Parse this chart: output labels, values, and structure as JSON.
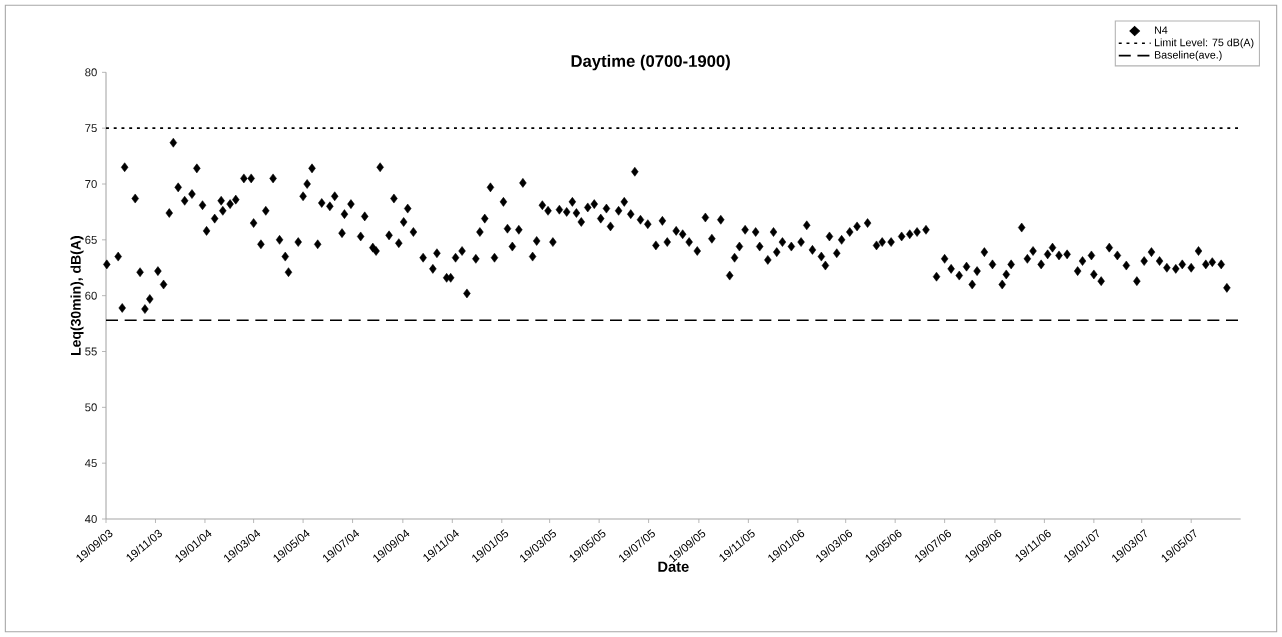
{
  "chart_data": {
    "type": "scatter",
    "title": "Daytime (0700-1900)",
    "xlabel": "Date",
    "ylabel": "Leq(30min), dB(A)",
    "xlim": [
      "2003-09-19",
      "2007-07-19"
    ],
    "ylim": [
      40,
      80
    ],
    "yticks": [
      40,
      45,
      50,
      55,
      60,
      65,
      70,
      75,
      80
    ],
    "xticks": [
      {
        "value": "2003-09-19",
        "label": "19/09/03"
      },
      {
        "value": "2003-11-19",
        "label": "19/11/03"
      },
      {
        "value": "2004-01-19",
        "label": "19/01/04"
      },
      {
        "value": "2004-03-19",
        "label": "19/03/04"
      },
      {
        "value": "2004-05-19",
        "label": "19/05/04"
      },
      {
        "value": "2004-07-19",
        "label": "19/07/04"
      },
      {
        "value": "2004-09-19",
        "label": "19/09/04"
      },
      {
        "value": "2004-11-19",
        "label": "19/11/04"
      },
      {
        "value": "2005-01-19",
        "label": "19/01/05"
      },
      {
        "value": "2005-03-19",
        "label": "19/03/05"
      },
      {
        "value": "2005-05-19",
        "label": "19/05/05"
      },
      {
        "value": "2005-07-19",
        "label": "19/07/05"
      },
      {
        "value": "2005-09-19",
        "label": "19/09/05"
      },
      {
        "value": "2005-11-19",
        "label": "19/11/05"
      },
      {
        "value": "2006-01-19",
        "label": "19/01/06"
      },
      {
        "value": "2006-03-19",
        "label": "19/03/06"
      },
      {
        "value": "2006-05-19",
        "label": "19/05/06"
      },
      {
        "value": "2006-07-19",
        "label": "19/07/06"
      },
      {
        "value": "2006-09-19",
        "label": "19/09/06"
      },
      {
        "value": "2006-11-19",
        "label": "19/11/06"
      },
      {
        "value": "2007-01-19",
        "label": "19/01/07"
      },
      {
        "value": "2007-03-19",
        "label": "19/03/07"
      },
      {
        "value": "2007-05-19",
        "label": "19/05/07"
      }
    ],
    "marker": "diamond",
    "legend": "top right",
    "ref_lines": [
      {
        "axis": "y",
        "value": 75,
        "label": "Limit Level: 75 dB(A)",
        "line_style": "dotted",
        "color": "#000000"
      },
      {
        "axis": "y",
        "value": 57.8,
        "label": "Baseline(ave.)",
        "line_style": "dashed",
        "color": "#000000"
      }
    ],
    "series": [
      {
        "name": "N4",
        "color": "#000000",
        "x": [
          "2003-09-20",
          "2003-10-04",
          "2003-10-09",
          "2003-10-12",
          "2003-10-25",
          "2003-10-31",
          "2003-11-06",
          "2003-11-12",
          "2003-11-22",
          "2003-11-29",
          "2003-12-06",
          "2003-12-11",
          "2003-12-17",
          "2003-12-25",
          "2004-01-03",
          "2004-01-09",
          "2004-01-16",
          "2004-01-21",
          "2004-01-31",
          "2004-02-08",
          "2004-02-10",
          "2004-02-19",
          "2004-02-26",
          "2004-03-07",
          "2004-03-16",
          "2004-03-19",
          "2004-03-28",
          "2004-04-03",
          "2004-04-12",
          "2004-04-20",
          "2004-04-27",
          "2004-05-01",
          "2004-05-13",
          "2004-05-19",
          "2004-05-24",
          "2004-05-30",
          "2004-06-06",
          "2004-06-11",
          "2004-06-21",
          "2004-06-27",
          "2004-07-06",
          "2004-07-09",
          "2004-07-17",
          "2004-07-29",
          "2004-08-03",
          "2004-08-13",
          "2004-08-17",
          "2004-08-22",
          "2004-09-02",
          "2004-09-08",
          "2004-09-14",
          "2004-09-20",
          "2004-09-25",
          "2004-10-02",
          "2004-10-14",
          "2004-10-26",
          "2004-10-31",
          "2004-11-12",
          "2004-11-17",
          "2004-11-23",
          "2004-12-01",
          "2004-12-07",
          "2004-12-18",
          "2004-12-23",
          "2004-12-29",
          "2005-01-05",
          "2005-01-10",
          "2005-01-21",
          "2005-01-26",
          "2005-02-01",
          "2005-02-09",
          "2005-02-14",
          "2005-02-26",
          "2005-03-03",
          "2005-03-10",
          "2005-03-17",
          "2005-03-23",
          "2005-03-31",
          "2005-04-09",
          "2005-04-16",
          "2005-04-21",
          "2005-04-27",
          "2005-05-05",
          "2005-05-13",
          "2005-05-21",
          "2005-05-28",
          "2005-06-02",
          "2005-06-12",
          "2005-06-19",
          "2005-06-27",
          "2005-07-02",
          "2005-07-09",
          "2005-07-18",
          "2005-07-28",
          "2005-08-05",
          "2005-08-11",
          "2005-08-22",
          "2005-08-30",
          "2005-09-07",
          "2005-09-17",
          "2005-09-27",
          "2005-10-05",
          "2005-10-16",
          "2005-10-27",
          "2005-11-02",
          "2005-11-08",
          "2005-11-15",
          "2005-11-28",
          "2005-12-03",
          "2005-12-13",
          "2005-12-20",
          "2005-12-24",
          "2005-12-31",
          "2006-01-11",
          "2006-01-23",
          "2006-01-30",
          "2006-02-06",
          "2006-02-17",
          "2006-02-22",
          "2006-02-27",
          "2006-03-08",
          "2006-03-14",
          "2006-03-24",
          "2006-04-02",
          "2006-04-15",
          "2006-04-26",
          "2006-05-03",
          "2006-05-14",
          "2006-05-27",
          "2006-06-06",
          "2006-06-15",
          "2006-06-26",
          "2006-07-09",
          "2006-07-19",
          "2006-07-27",
          "2006-08-06",
          "2006-08-15",
          "2006-08-22",
          "2006-08-28",
          "2006-09-06",
          "2006-09-16",
          "2006-09-28",
          "2006-10-03",
          "2006-10-09",
          "2006-10-22",
          "2006-10-29",
          "2006-11-05",
          "2006-11-15",
          "2006-11-23",
          "2006-11-29",
          "2006-12-07",
          "2006-12-17",
          "2006-12-30",
          "2007-01-05",
          "2007-01-16",
          "2007-01-19",
          "2007-01-28",
          "2007-02-07",
          "2007-02-17",
          "2007-02-28",
          "2007-03-13",
          "2007-03-22",
          "2007-03-31",
          "2007-04-10",
          "2007-04-19",
          "2007-04-30",
          "2007-05-08",
          "2007-05-19",
          "2007-05-28",
          "2007-06-06",
          "2007-06-14",
          "2007-06-25",
          "2007-07-02"
        ],
        "values": [
          62.8,
          63.5,
          58.9,
          71.5,
          68.7,
          62.1,
          58.8,
          59.7,
          62.2,
          61.0,
          67.4,
          73.7,
          69.7,
          68.5,
          69.1,
          71.4,
          68.1,
          65.8,
          66.9,
          68.5,
          67.6,
          68.2,
          68.6,
          70.5,
          70.5,
          66.5,
          64.6,
          67.6,
          70.5,
          65.0,
          63.5,
          62.1,
          64.8,
          68.9,
          70.0,
          71.4,
          64.6,
          68.3,
          68.0,
          68.9,
          65.6,
          67.3,
          68.2,
          65.3,
          67.1,
          64.3,
          64.0,
          71.5,
          65.4,
          68.7,
          64.7,
          66.6,
          67.8,
          65.7,
          63.4,
          62.4,
          63.8,
          61.6,
          61.6,
          63.4,
          64.0,
          60.2,
          63.3,
          65.7,
          66.9,
          69.7,
          63.4,
          68.4,
          66.0,
          64.4,
          65.9,
          70.1,
          63.5,
          64.9,
          68.1,
          67.6,
          64.8,
          67.7,
          67.5,
          68.4,
          67.4,
          66.6,
          67.9,
          68.2,
          66.9,
          67.8,
          66.2,
          67.6,
          68.4,
          67.3,
          71.1,
          66.8,
          66.4,
          64.5,
          66.7,
          64.8,
          65.8,
          65.5,
          64.8,
          64.0,
          67.0,
          65.1,
          66.8,
          61.8,
          63.4,
          64.4,
          65.9,
          65.7,
          64.4,
          63.2,
          65.7,
          63.9,
          64.8,
          64.4,
          64.8,
          66.3,
          64.1,
          63.5,
          62.7,
          65.3,
          63.8,
          65.0,
          65.7,
          66.2,
          66.5,
          64.5,
          64.8,
          64.8,
          65.3,
          65.5,
          65.7,
          65.9,
          61.7,
          63.3,
          62.4,
          61.8,
          62.6,
          61.0,
          62.2,
          63.9,
          62.8,
          61.0,
          61.9,
          62.8,
          66.1,
          63.3,
          64.0,
          62.8,
          63.7,
          64.3,
          63.6,
          63.7,
          62.2,
          63.1,
          63.6,
          61.9,
          61.3,
          64.3,
          63.6,
          62.7,
          61.3,
          63.1,
          63.9,
          63.1,
          62.5,
          62.4,
          62.8,
          62.5,
          64.0,
          62.8,
          63.0,
          62.8,
          60.7
        ]
      }
    ]
  }
}
